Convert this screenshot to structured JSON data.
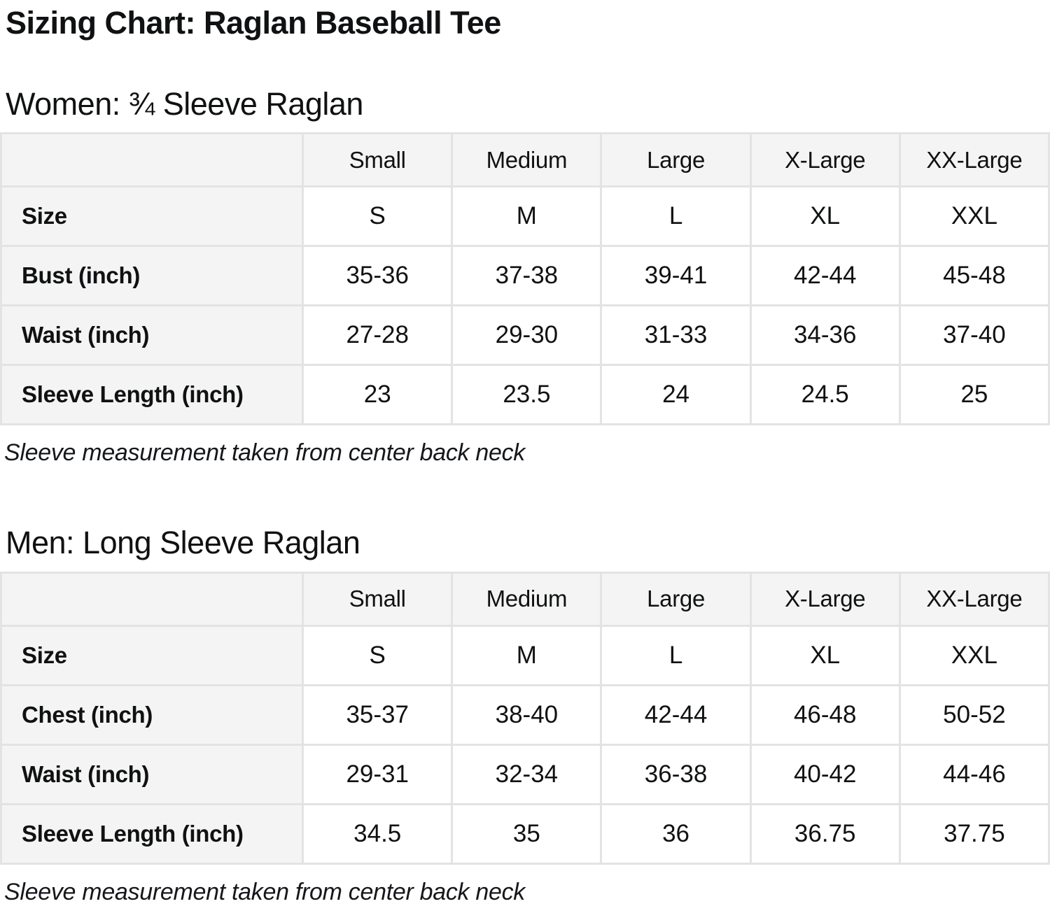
{
  "page": {
    "title": "Sizing Chart: Raglan Baseball Tee"
  },
  "colors": {
    "header_cell_bg": "#f4f4f4",
    "table_border": "#e3e3e3",
    "text": "#101112",
    "page_bg": "#ffffff"
  },
  "sections": [
    {
      "heading": "Women: ¾ Sleeve Raglan",
      "note": "Sleeve measurement taken from center back neck",
      "table": {
        "columns": [
          "Small",
          "Medium",
          "Large",
          "X-Large",
          "XX-Large"
        ],
        "rows": [
          {
            "label": "Size",
            "values": [
              "S",
              "M",
              "L",
              "XL",
              "XXL"
            ]
          },
          {
            "label": "Bust (inch)",
            "values": [
              "35-36",
              "37-38",
              "39-41",
              "42-44",
              "45-48"
            ]
          },
          {
            "label": "Waist (inch)",
            "values": [
              "27-28",
              "29-30",
              "31-33",
              "34-36",
              "37-40"
            ]
          },
          {
            "label": "Sleeve Length (inch)",
            "values": [
              "23",
              "23.5",
              "24",
              "24.5",
              "25"
            ]
          }
        ]
      }
    },
    {
      "heading": "Men: Long Sleeve Raglan",
      "note": "Sleeve measurement taken from center back neck",
      "table": {
        "columns": [
          "Small",
          "Medium",
          "Large",
          "X-Large",
          "XX-Large"
        ],
        "rows": [
          {
            "label": "Size",
            "values": [
              "S",
              "M",
              "L",
              "XL",
              "XXL"
            ]
          },
          {
            "label": "Chest (inch)",
            "values": [
              "35-37",
              "38-40",
              "42-44",
              "46-48",
              "50-52"
            ]
          },
          {
            "label": "Waist (inch)",
            "values": [
              "29-31",
              "32-34",
              "36-38",
              "40-42",
              "44-46"
            ]
          },
          {
            "label": "Sleeve Length (inch)",
            "values": [
              "34.5",
              "35",
              "36",
              "36.75",
              "37.75"
            ]
          }
        ]
      }
    }
  ]
}
